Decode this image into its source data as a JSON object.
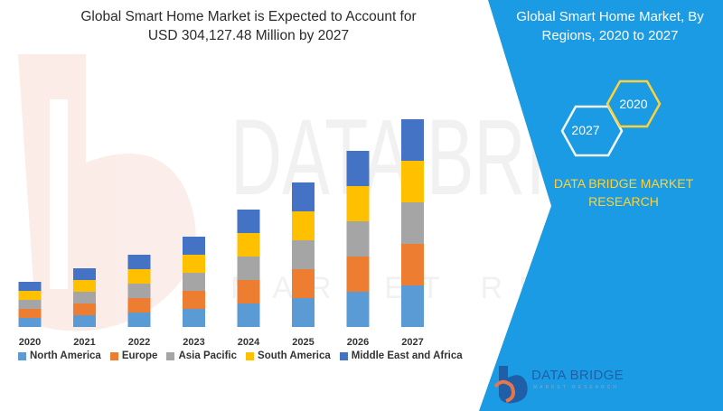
{
  "header": {
    "title_line1": "Global Smart Home Market is Expected to Account for",
    "title_line2": "USD 304,127.48 Million by 2027",
    "right_title_line1": "Global Smart Home Market, By",
    "right_title_line2": "Regions, 2020 to 2027"
  },
  "panel": {
    "hex_small": "2027",
    "hex_large": "2020",
    "brand_line1": "DATA BRIDGE MARKET",
    "brand_line2": "RESEARCH",
    "logo_name": "DATA BRIDGE",
    "logo_sub": "MARKET RESEARCH",
    "watermark_word1": "DATA BRIDGE",
    "watermark_word2": "MARKET RESEARCH",
    "panel_color": "#1b9be3",
    "accent_color": "#ffd23a"
  },
  "chart_data": {
    "type": "bar",
    "stacked": true,
    "categories": [
      "2020",
      "2021",
      "2022",
      "2023",
      "2024",
      "2025",
      "2026",
      "2027"
    ],
    "series": [
      {
        "name": "North America",
        "color": "#5b9bd5",
        "values": [
          10,
          13,
          16,
          20,
          26,
          32,
          39,
          46
        ]
      },
      {
        "name": "Europe",
        "color": "#ed7d31",
        "values": [
          10,
          13,
          16,
          20,
          26,
          32,
          39,
          46
        ]
      },
      {
        "name": "Asia Pacific",
        "color": "#a5a5a5",
        "values": [
          10,
          13,
          16,
          20,
          26,
          32,
          39,
          46
        ]
      },
      {
        "name": "South America",
        "color": "#ffc000",
        "values": [
          10,
          13,
          16,
          20,
          26,
          32,
          39,
          46
        ]
      },
      {
        "name": "Middle East and Africa",
        "color": "#4472c4",
        "values": [
          10,
          13,
          16,
          20,
          26,
          32,
          39,
          46
        ]
      }
    ],
    "ylim": [
      0,
      240
    ],
    "grid": false,
    "legend_position": "bottom"
  }
}
